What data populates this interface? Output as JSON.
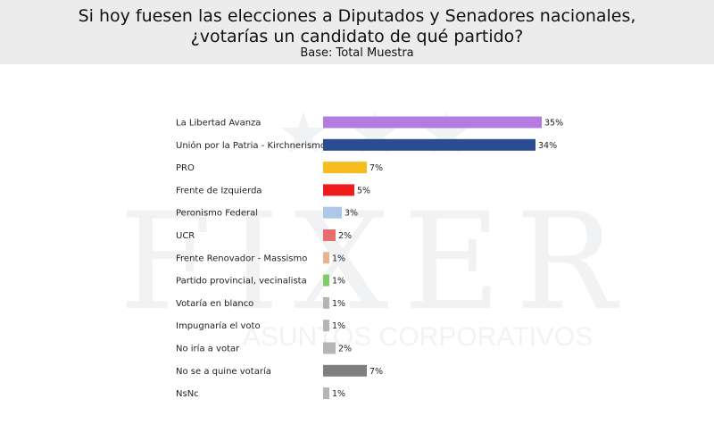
{
  "header": {
    "title_line1": "Si hoy fuesen las elecciones a Diputados y Senadores nacionales,",
    "title_line2": "¿votarías un candidato de qué partido?",
    "subtitle": "Base: Total Muestra"
  },
  "watermark": {
    "brand": "FIXER",
    "tagline": "ASUNTOS CORPORATIVOS"
  },
  "chart_data": {
    "type": "bar",
    "orientation": "horizontal",
    "categories": [
      "La Libertad Avanza",
      "Unión por la Patria - Kirchnerismo",
      "PRO",
      "Frente de Izquierda",
      "Peronismo Federal",
      "UCR",
      "Frente Renovador - Massismo",
      "Partido provincial, vecinalista",
      "Votaría en blanco",
      "Impugnaría el voto",
      "No iría a votar",
      "No se a quine votaría",
      "NsNc"
    ],
    "values": [
      35,
      34,
      7,
      5,
      3,
      2,
      1,
      1,
      1,
      1,
      2,
      7,
      1
    ],
    "value_labels": [
      "35%",
      "34%",
      "7%",
      "5%",
      "3%",
      "2%",
      "1%",
      "1%",
      "1%",
      "1%",
      "2%",
      "7%",
      "1%"
    ],
    "colors": [
      "#b47be0",
      "#2c4c91",
      "#f5bd1f",
      "#ee1c1c",
      "#aec8e8",
      "#e96d6d",
      "#e8b48f",
      "#7fcd63",
      "#b5b5b5",
      "#b5b5b5",
      "#b5b5b5",
      "#7f7f7f",
      "#b5b5b5"
    ],
    "unit": "%",
    "grid": false,
    "legend": "none"
  }
}
